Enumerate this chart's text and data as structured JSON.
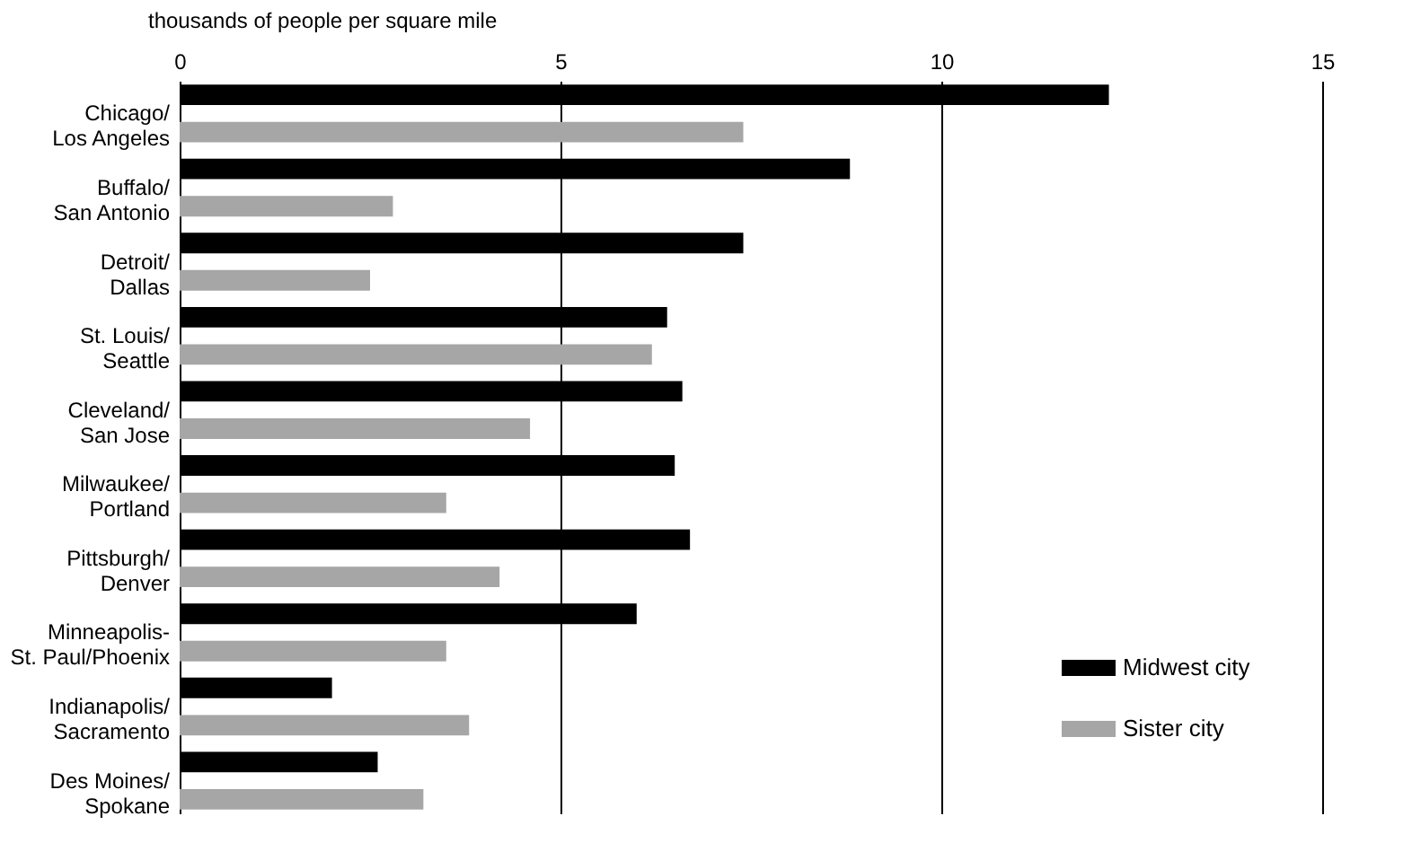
{
  "chart_data": {
    "type": "bar",
    "orientation": "horizontal",
    "xlabel": "thousands of people per square mile",
    "categories": [
      "Chicago/\nLos Angeles",
      "Buffalo/\nSan Antonio",
      "Detroit/\nDallas",
      "St. Louis/\nSeattle",
      "Cleveland/\nSan Jose",
      "Milwaukee/\nPortland",
      "Pittsburgh/\nDenver",
      "Minneapolis-\nSt. Paul/Phoenix",
      "Indianapolis/\nSacramento",
      "Des Moines/\nSpokane"
    ],
    "series": [
      {
        "name": "Midwest city",
        "color": "#000000",
        "values": [
          12.2,
          8.8,
          7.4,
          6.4,
          6.6,
          6.5,
          6.7,
          6.0,
          2.0,
          2.6
        ]
      },
      {
        "name": "Sister city",
        "color": "#a6a6a6",
        "values": [
          7.4,
          2.8,
          2.5,
          6.2,
          4.6,
          3.5,
          4.2,
          3.5,
          3.8,
          3.2
        ]
      }
    ],
    "xlim": [
      0,
      15
    ],
    "xticks": [
      0,
      5,
      10,
      15
    ],
    "grid": "x",
    "legend": "bottom right"
  }
}
